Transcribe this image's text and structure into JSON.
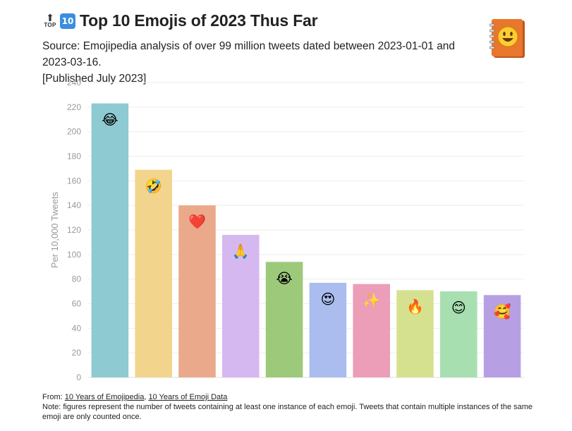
{
  "header": {
    "badge_top_arrow": "⬆",
    "badge_top_word": "TOP",
    "badge_ten": "10",
    "title": "Top 10 Emojis of 2023 Thus Far",
    "subtitle_line1": "Source: Emojipedia analysis of over 99 million tweets dated between 2023-01-01 and 2023-03-16.",
    "subtitle_line2": "[Published July 2023]"
  },
  "logo": {
    "icon": "emojipedia-book-icon",
    "face": "😃"
  },
  "footer": {
    "from_label": "From: ",
    "link1": "10 Years of Emojipedia",
    "separator": ", ",
    "link2": "10 Years of Emoji Data",
    "note": "Note: figures represent the number of tweets containing at least one instance of each emoji. Tweets that contain multiple instances of the same emoji are only counted once."
  },
  "chart_data": {
    "type": "bar",
    "title": "Top 10 Emojis of 2023 Thus Far",
    "xlabel": "",
    "ylabel": "Per 10,000 Tweets",
    "ylim": [
      0,
      240
    ],
    "yticks": [
      0,
      20,
      40,
      60,
      80,
      100,
      120,
      140,
      160,
      180,
      200,
      220,
      240
    ],
    "grid": true,
    "categories": [
      "😂",
      "🤣",
      "❤️",
      "🙏",
      "😭",
      "😍",
      "✨",
      "🔥",
      "😊",
      "🥰"
    ],
    "values": [
      223,
      169,
      140,
      116,
      94,
      77,
      76,
      71,
      70,
      67
    ],
    "colors": [
      "#8ecad1",
      "#f3d48c",
      "#eaa98a",
      "#d5b8ef",
      "#9dc97b",
      "#abbdee",
      "#ec9db8",
      "#d6e18f",
      "#a7dfb1",
      "#b6a0e3"
    ],
    "axis_color": "#999999",
    "grid_color": "#eeeeee"
  }
}
